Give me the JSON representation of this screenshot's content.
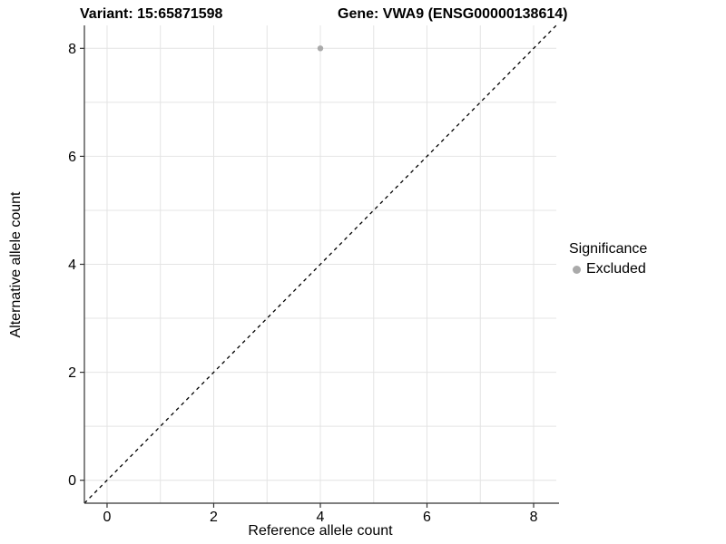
{
  "title": {
    "variant": "Variant: 15:65871598",
    "gene": "Gene: VWA9 (ENSG00000138614)"
  },
  "axes": {
    "xlabel": "Reference allele count",
    "ylabel": "Alternative allele count"
  },
  "legend": {
    "title": "Significance",
    "items": [
      {
        "label": "Excluded",
        "color": "#aaaaaa"
      }
    ]
  },
  "chart_data": {
    "type": "scatter",
    "title": "Variant: 15:65871598   Gene: VWA9 (ENSG00000138614)",
    "xlabel": "Reference allele count",
    "ylabel": "Alternative allele count",
    "xlim": [
      -0.425,
      8.425
    ],
    "ylim": [
      -0.425,
      8.425
    ],
    "x_ticks": [
      0,
      2,
      4,
      6,
      8
    ],
    "y_ticks": [
      0,
      2,
      4,
      6,
      8
    ],
    "grid_x": [
      0,
      1,
      2,
      3,
      4,
      5,
      6,
      7,
      8
    ],
    "grid_y": [
      0,
      1,
      2,
      3,
      4,
      5,
      6,
      7,
      8
    ],
    "grid": true,
    "legend_position": "right",
    "series": [
      {
        "name": "Excluded",
        "color": "#aaaaaa",
        "points": [
          {
            "x": 4,
            "y": 8
          }
        ]
      }
    ],
    "reference_line": {
      "slope": 1,
      "intercept": 0,
      "style": "dashed",
      "color": "#000000"
    },
    "colors": {
      "grid": "#e4e4e4",
      "axis": "#333333",
      "tick_text": "#000000",
      "background": "#ffffff"
    }
  }
}
